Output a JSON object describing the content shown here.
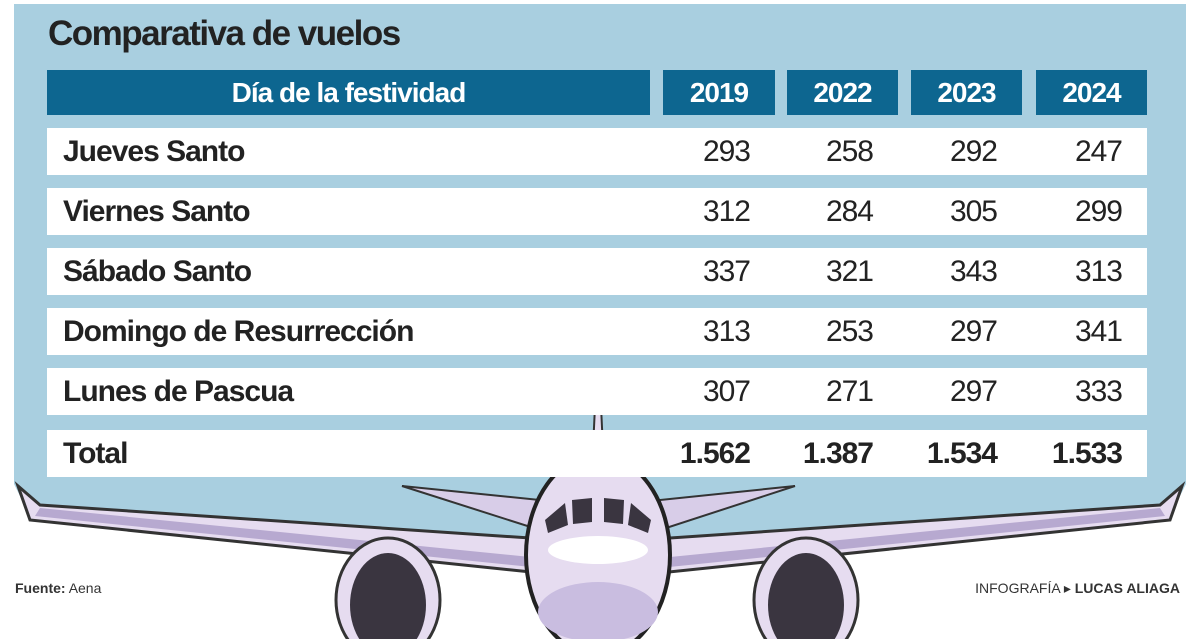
{
  "title": "Comparativa de vuelos",
  "colors": {
    "panel": "#a9cfe0",
    "header": "#0d6690",
    "plane": "#e8dff0",
    "engine": "#3a3540"
  },
  "chart_data": {
    "type": "table",
    "title": "Comparativa de vuelos",
    "columns": [
      "Día de la festividad",
      "2019",
      "2022",
      "2023",
      "2024"
    ],
    "rows": [
      {
        "label": "Jueves Santo",
        "values": [
          "293",
          "258",
          "292",
          "247"
        ]
      },
      {
        "label": "Viernes Santo",
        "values": [
          "312",
          "284",
          "305",
          "299"
        ]
      },
      {
        "label": "Sábado Santo",
        "values": [
          "337",
          "321",
          "343",
          "313"
        ]
      },
      {
        "label": "Domingo de Resurrección",
        "values": [
          "313",
          "253",
          "297",
          "341"
        ]
      },
      {
        "label": "Lunes de Pascua",
        "values": [
          "307",
          "271",
          "297",
          "333"
        ]
      },
      {
        "label": "Total",
        "values": [
          "1.562",
          "1.387",
          "1.534",
          "1.533"
        ]
      }
    ]
  },
  "footer": {
    "source_label": "Fuente:",
    "source": "Aena",
    "credit_label": "INFOGRAFÍA",
    "credit_arrow": "▸",
    "credit": "LUCAS ALIAGA"
  }
}
